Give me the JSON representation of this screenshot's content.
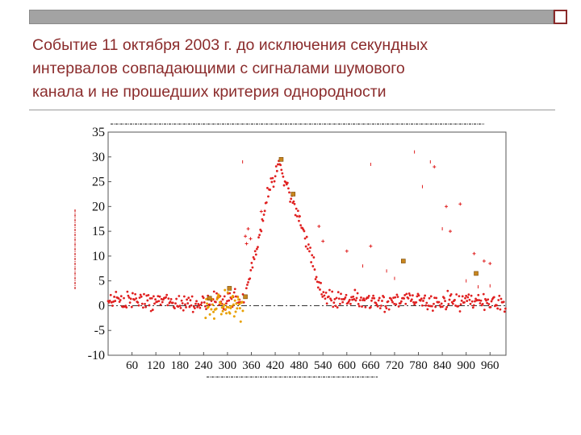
{
  "slide": {
    "title_lines": [
      "Событие 11 октября 2003 г. до исключения секундных",
      "интервалов совпадающими с сигналами шумового",
      "канала и не прошедших критерия однородности"
    ]
  },
  "colors": {
    "title": "#8b2c2c",
    "points_main": "#e02020",
    "points_excluded": "#e8a000",
    "squares": "#c8861e",
    "top_bar": "#a3a3a3",
    "corner_border": "#8a2a2a"
  },
  "chart_data": {
    "type": "scatter",
    "title": "",
    "xlabel": "",
    "ylabel": "",
    "xlim": [
      0,
      1000
    ],
    "ylim": [
      -10,
      35
    ],
    "x_ticks": [
      60,
      120,
      180,
      240,
      300,
      360,
      420,
      480,
      540,
      600,
      660,
      720,
      780,
      840,
      900,
      960
    ],
    "y_ticks": [
      35,
      30,
      25,
      20,
      15,
      10,
      5,
      0,
      -5,
      -10
    ],
    "grid": false,
    "reference_line": {
      "y": 0,
      "style": "dash-dot"
    },
    "series": [
      {
        "marker": "dot",
        "color": "#e02020",
        "profile": [
          {
            "x": 0,
            "y": 1
          },
          {
            "x": 100,
            "y": 1
          },
          {
            "x": 200,
            "y": 0.5
          },
          {
            "x": 300,
            "y": 1
          },
          {
            "x": 340,
            "y": 2
          },
          {
            "x": 360,
            "y": 7
          },
          {
            "x": 385,
            "y": 16
          },
          {
            "x": 410,
            "y": 25
          },
          {
            "x": 430,
            "y": 28
          },
          {
            "x": 460,
            "y": 22
          },
          {
            "x": 490,
            "y": 15
          },
          {
            "x": 515,
            "y": 8
          },
          {
            "x": 535,
            "y": 3
          },
          {
            "x": 560,
            "y": 1.5
          },
          {
            "x": 700,
            "y": 1
          },
          {
            "x": 850,
            "y": 0.8
          },
          {
            "x": 1000,
            "y": 0.5
          }
        ],
        "noise": 1.5
      },
      {
        "marker": "dot",
        "color": "#e8a000",
        "range": [
          245,
          340
        ],
        "center": 0,
        "noise": 2
      },
      {
        "marker": "square",
        "color": "#c8861e",
        "points": [
          {
            "x": 435,
            "y": 29.5
          },
          {
            "x": 465,
            "y": 22.5
          },
          {
            "x": 255,
            "y": 1.5
          },
          {
            "x": 305,
            "y": 3.5
          },
          {
            "x": 345,
            "y": 1.8
          },
          {
            "x": 742,
            "y": 9
          },
          {
            "x": 925,
            "y": 6.5
          }
        ]
      },
      {
        "marker": "plus",
        "color": "#e02020",
        "points": [
          {
            "x": 345,
            "y": 14
          },
          {
            "x": 348,
            "y": 12.5
          },
          {
            "x": 352,
            "y": 15.5
          },
          {
            "x": 358,
            "y": 13.5
          },
          {
            "x": 385,
            "y": 19
          },
          {
            "x": 480,
            "y": 18
          },
          {
            "x": 530,
            "y": 16
          },
          {
            "x": 540,
            "y": 13
          },
          {
            "x": 600,
            "y": 11
          },
          {
            "x": 660,
            "y": 12
          },
          {
            "x": 820,
            "y": 28
          },
          {
            "x": 850,
            "y": 20
          },
          {
            "x": 860,
            "y": 15
          },
          {
            "x": 885,
            "y": 20.5
          },
          {
            "x": 920,
            "y": 10.5
          },
          {
            "x": 945,
            "y": 9
          },
          {
            "x": 960,
            "y": 8.5
          }
        ]
      },
      {
        "marker": "tick",
        "color": "#e02020",
        "points": [
          {
            "x": 338,
            "y": 29
          },
          {
            "x": 660,
            "y": 28.5
          },
          {
            "x": 770,
            "y": 31
          },
          {
            "x": 790,
            "y": 24
          },
          {
            "x": 810,
            "y": 29
          },
          {
            "x": 840,
            "y": 15.5
          },
          {
            "x": 640,
            "y": 8
          },
          {
            "x": 700,
            "y": 7
          },
          {
            "x": 720,
            "y": 5.5
          },
          {
            "x": 900,
            "y": 5
          },
          {
            "x": 930,
            "y": 3.8
          },
          {
            "x": 960,
            "y": 4
          }
        ]
      }
    ]
  }
}
